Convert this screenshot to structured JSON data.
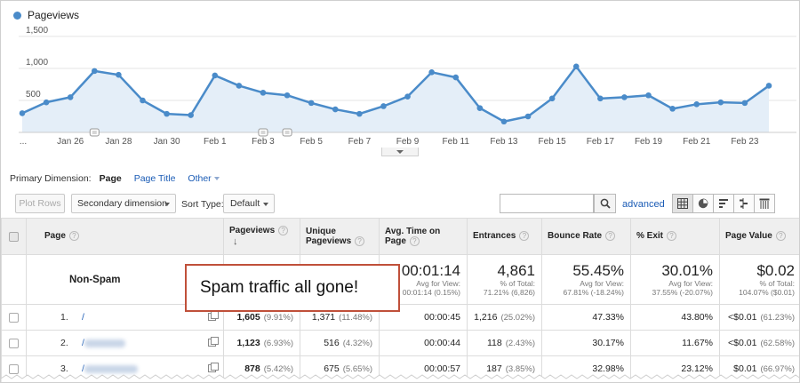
{
  "chart": {
    "legend_label": "Pageviews",
    "colors": {
      "line": "#4a8bc9",
      "fill": "#e4eef8"
    },
    "y_tick_labels": [
      "1,500",
      "1,000",
      "500"
    ],
    "y_ticks": [
      1500,
      1000,
      500
    ],
    "x_tick_labels": [
      "...",
      "Jan 26",
      "Jan 28",
      "Jan 30",
      "Feb 1",
      "Feb 3",
      "Feb 5",
      "Feb 7",
      "Feb 9",
      "Feb 11",
      "Feb 13",
      "Feb 15",
      "Feb 17",
      "Feb 19",
      "Feb 21",
      "Feb 23"
    ],
    "annotation_marker_indices": [
      3,
      10,
      11
    ]
  },
  "chart_data": {
    "type": "area",
    "series": [
      {
        "name": "Pageviews",
        "values": [
          300,
          470,
          550,
          960,
          900,
          500,
          290,
          270,
          890,
          730,
          620,
          580,
          460,
          360,
          290,
          410,
          560,
          940,
          860,
          380,
          170,
          250,
          530,
          1030,
          530,
          550,
          580,
          370,
          440,
          470,
          460,
          730
        ]
      }
    ],
    "ylim": [
      0,
      1500
    ]
  },
  "primary_dimension": {
    "label": "Primary Dimension:",
    "active": "Page",
    "options": [
      "Page Title"
    ],
    "other": "Other"
  },
  "toolbar": {
    "plot_rows": "Plot Rows",
    "secondary_dimension": "Secondary dimension",
    "sort_type_label": "Sort Type:",
    "sort_type_value": "Default",
    "advanced": "advanced"
  },
  "table": {
    "headers": {
      "page": "Page",
      "pageviews": "Pageviews",
      "unique_pageviews": "Unique Pageviews",
      "avg_time": "Avg. Time on Page",
      "entrances": "Entrances",
      "bounce_rate": "Bounce Rate",
      "exit": "% Exit",
      "page_value": "Page Value"
    },
    "summary": {
      "title": "Non-Spam",
      "avg_time": "00:01:14",
      "avg_time_sub": "Avg for View:",
      "avg_time_sub2": "00:01:14 (0.15%)",
      "entrances": "4,861",
      "entrances_sub": "% of Total:",
      "entrances_sub2": "71.21% (6,826)",
      "bounce_rate": "55.45%",
      "bounce_rate_sub": "Avg for View:",
      "bounce_rate_sub2": "67.81% (-18.24%)",
      "exit": "30.01%",
      "exit_sub": "Avg for View:",
      "exit_sub2": "37.55% (-20.07%)",
      "page_value": "$0.02",
      "page_value_sub": "% of Total:",
      "page_value_sub2": "104.07% ($0.01)"
    },
    "rows": [
      {
        "index": "1.",
        "page": "/",
        "pageviews": "1,605",
        "pageviews_pct": "(9.91%)",
        "unique": "1,371",
        "unique_pct": "(11.48%)",
        "avg_time": "00:00:45",
        "entrances": "1,216",
        "entrances_pct": "(25.02%)",
        "bounce": "47.33%",
        "exit": "43.80%",
        "value": "<$0.01",
        "value_pct": "(61.23%)"
      },
      {
        "index": "2.",
        "page": "/",
        "pageviews": "1,123",
        "pageviews_pct": "(6.93%)",
        "unique": "516",
        "unique_pct": "(4.32%)",
        "avg_time": "00:00:44",
        "entrances": "118",
        "entrances_pct": "(2.43%)",
        "bounce": "30.17%",
        "exit": "11.67%",
        "value": "<$0.01",
        "value_pct": "(62.58%)"
      },
      {
        "index": "3.",
        "page": "/",
        "pageviews": "878",
        "pageviews_pct": "(5.42%)",
        "unique": "675",
        "unique_pct": "(5.65%)",
        "avg_time": "00:00:57",
        "entrances": "187",
        "entrances_pct": "(3.85%)",
        "bounce": "32.98%",
        "exit": "23.12%",
        "value": "$0.01",
        "value_pct": "(66.97%)"
      }
    ]
  },
  "annotation": {
    "text": "Spam traffic all gone!",
    "border_color": "#c0503a"
  }
}
